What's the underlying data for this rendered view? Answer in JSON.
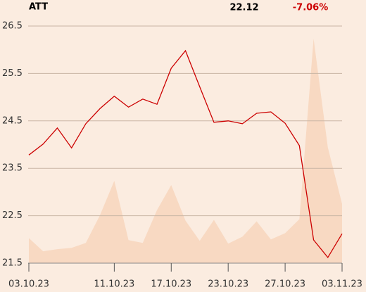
{
  "chart_data": {
    "type": "line",
    "title": "ATT",
    "last_price": "22.12",
    "change": "-7.06%",
    "categories": [
      "03.10.23",
      null,
      null,
      null,
      null,
      null,
      "11.10.23",
      null,
      null,
      null,
      "17.10.23",
      null,
      null,
      null,
      "23.10.23",
      null,
      null,
      null,
      "27.10.23",
      null,
      null,
      null,
      "03.11.23"
    ],
    "series": [
      {
        "name": "Price",
        "color": "#cc0000",
        "values": [
          23.78,
          24.01,
          24.35,
          23.93,
          24.44,
          24.76,
          25.02,
          24.79,
          24.96,
          24.85,
          25.61,
          25.98,
          25.22,
          24.47,
          24.5,
          24.44,
          24.66,
          24.69,
          24.45,
          23.98,
          21.99,
          21.62,
          22.12
        ]
      },
      {
        "name": "Volume",
        "color": "#f8d9c2",
        "axis": "y2",
        "values": [
          36,
          17,
          20,
          22,
          29,
          69,
          118,
          33,
          29,
          76,
          112,
          61,
          32,
          62,
          28,
          38,
          60,
          34,
          43,
          63,
          322,
          166,
          85
        ]
      }
    ],
    "ylim": [
      21.5,
      26.5
    ],
    "yticks": [
      21.5,
      22.5,
      23.5,
      24.5,
      25.5,
      26.5
    ],
    "y2lim": [
      0,
      340
    ],
    "grid": true,
    "change_color": "#cc0000"
  }
}
